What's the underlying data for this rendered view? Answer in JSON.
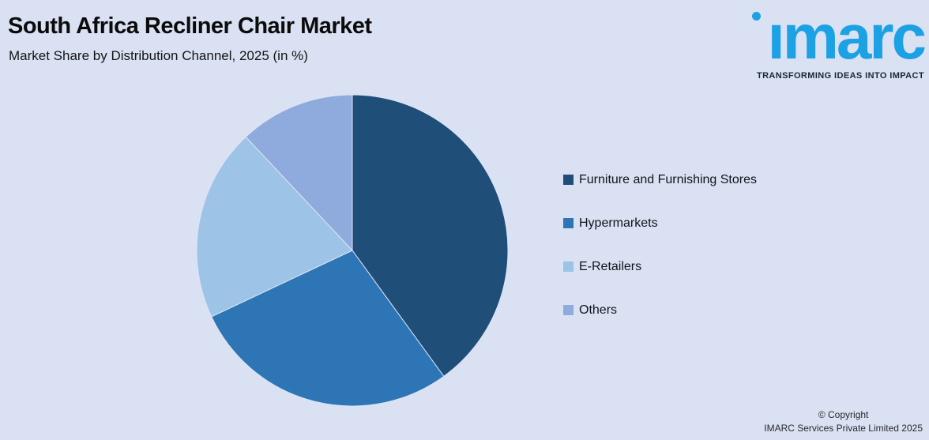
{
  "header": {
    "title": "South Africa Recliner Chair Market",
    "subtitle": "Market Share by Distribution Channel, 2025 (in %)"
  },
  "logo": {
    "wordmark": "imarc",
    "tagline": "TRANSFORMING IDEAS INTO IMPACT",
    "brand_color": "#1BA1E4",
    "tagline_color": "#1c2633"
  },
  "chart_data": {
    "type": "pie",
    "title": "South Africa Recliner Chair Market",
    "subtitle": "Market Share by Distribution Channel, 2025 (in %)",
    "unit": "%",
    "categories": [
      "Furniture and Furnishing Stores",
      "Hypermarkets",
      "E-Retailers",
      "Others"
    ],
    "values": [
      40,
      28,
      20,
      12
    ],
    "colors": [
      "#1F4E79",
      "#2E75B6",
      "#9DC3E6",
      "#8FAADC"
    ],
    "start_angle_deg": 0,
    "direction": "clockwise",
    "legend_position": "right",
    "data_labels": false
  },
  "footer": {
    "line1": "© Copyright",
    "line2": "IMARC Services Private Limited 2025"
  },
  "colors": {
    "background": "#D9E1F2",
    "slice_divider": "#DCE4F4"
  }
}
